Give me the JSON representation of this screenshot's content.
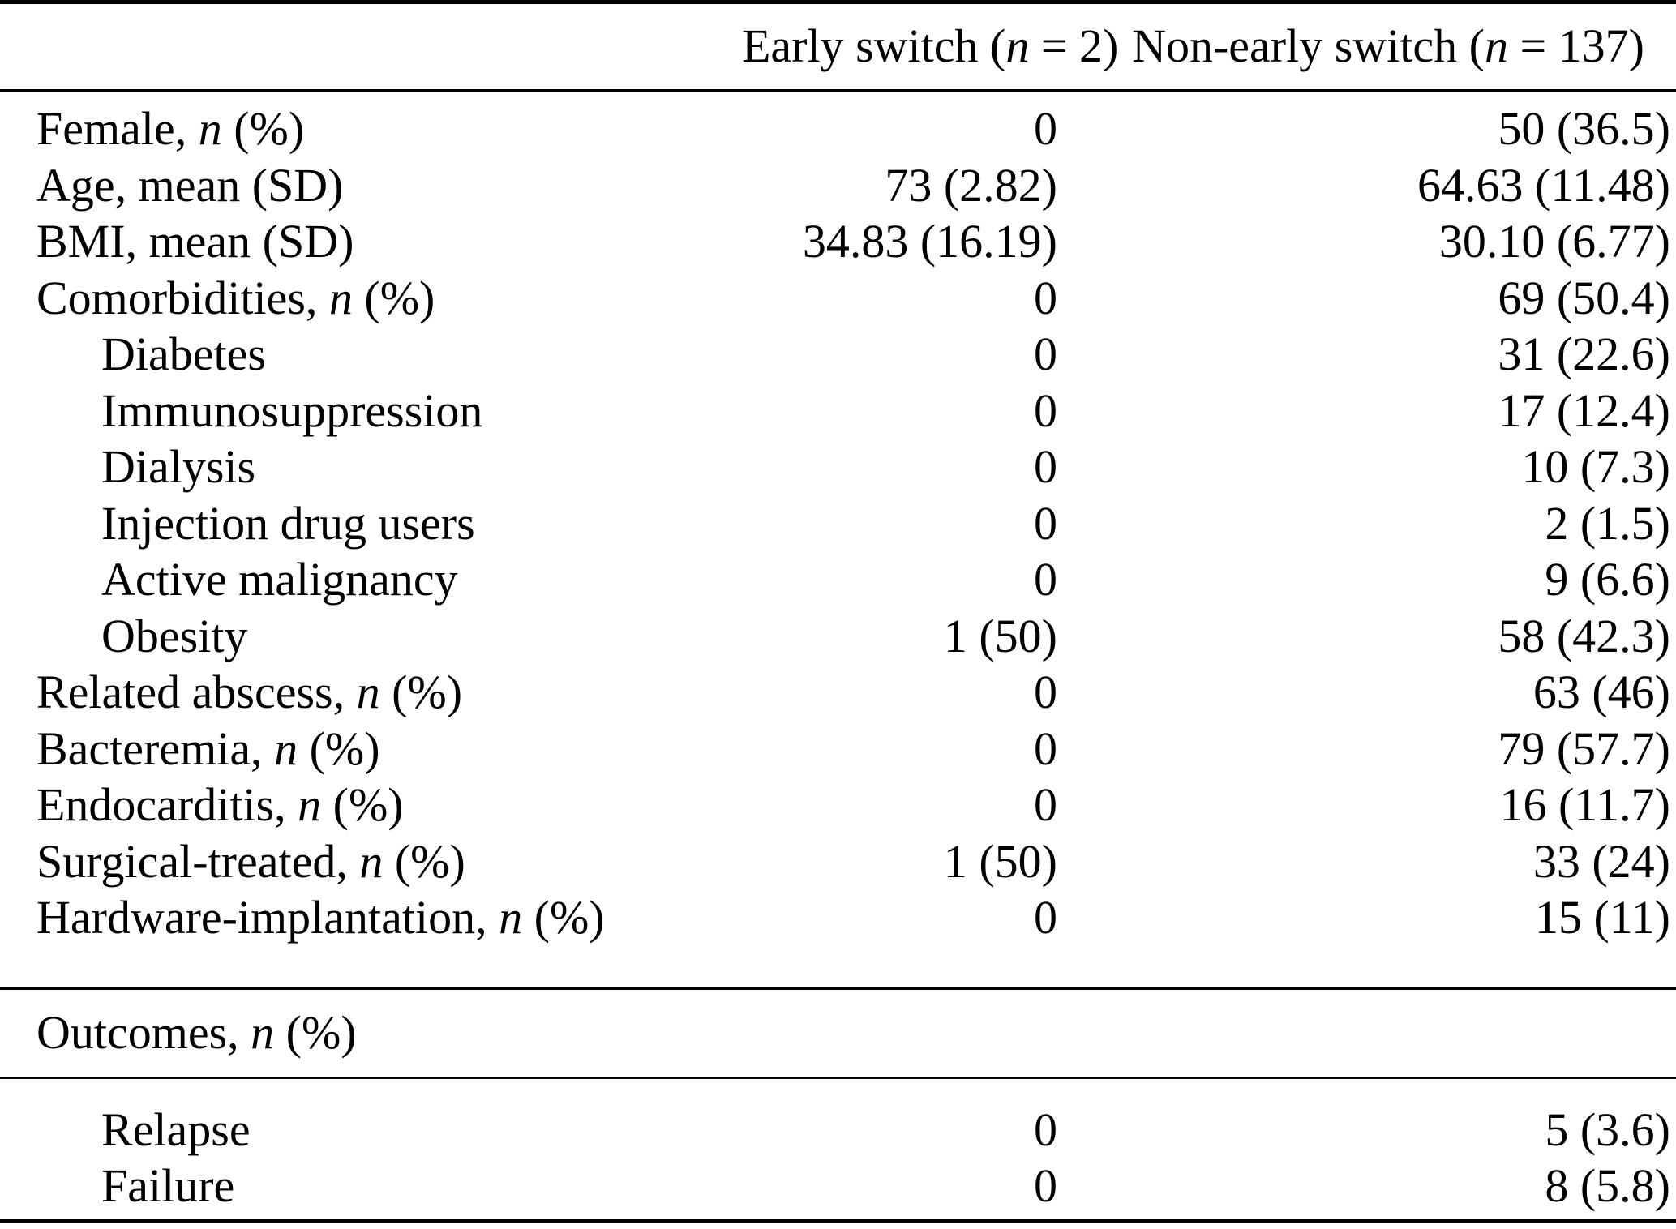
{
  "colors": {
    "text": "#000000",
    "background": "#ffffff",
    "rule": "#000000"
  },
  "table": {
    "header": {
      "label_column": "",
      "col_early": "Early switch (*n* = 2)",
      "col_non_early": "Non-early switch (*n* = 137)"
    },
    "main_rows": [
      {
        "label": "Female, *n* (%)",
        "indent": false,
        "early_switch": "0",
        "non_early_switch": "50 (36.5)"
      },
      {
        "label": "Age, mean (SD)",
        "indent": false,
        "early_switch": "73 (2.82)",
        "non_early_switch": "64.63 (11.48)"
      },
      {
        "label": "BMI, mean (SD)",
        "indent": false,
        "early_switch": "34.83 (16.19)",
        "non_early_switch": "30.10 (6.77)"
      },
      {
        "label": "Comorbidities, *n* (%)",
        "indent": false,
        "early_switch": "0",
        "non_early_switch": "69 (50.4)"
      },
      {
        "label": "Diabetes",
        "indent": true,
        "early_switch": "0",
        "non_early_switch": "31 (22.6)"
      },
      {
        "label": "Immunosuppression",
        "indent": true,
        "early_switch": "0",
        "non_early_switch": "17 (12.4)"
      },
      {
        "label": "Dialysis",
        "indent": true,
        "early_switch": "0",
        "non_early_switch": "10 (7.3)"
      },
      {
        "label": "Injection drug users",
        "indent": true,
        "early_switch": "0",
        "non_early_switch": "2 (1.5)"
      },
      {
        "label": "Active malignancy",
        "indent": true,
        "early_switch": "0",
        "non_early_switch": "9 (6.6)"
      },
      {
        "label": "Obesity",
        "indent": true,
        "early_switch": "1 (50)",
        "non_early_switch": "58 (42.3)"
      },
      {
        "label": "Related abscess, *n* (%)",
        "indent": false,
        "early_switch": "0",
        "non_early_switch": "63 (46)"
      },
      {
        "label": "Bacteremia, *n* (%)",
        "indent": false,
        "early_switch": "0",
        "non_early_switch": "79 (57.7)"
      },
      {
        "label": "Endocarditis, *n* (%)",
        "indent": false,
        "early_switch": "0",
        "non_early_switch": "16 (11.7)"
      },
      {
        "label": "Surgical-treated, *n* (%)",
        "indent": false,
        "early_switch": "1 (50)",
        "non_early_switch": "33 (24)"
      },
      {
        "label": "Hardware-implantation, *n* (%)",
        "indent": false,
        "early_switch": "0",
        "non_early_switch": "15 (11)"
      }
    ],
    "outcomes_section": {
      "label": "Outcomes, *n* (%)",
      "rows": [
        {
          "label": "Relapse",
          "indent": true,
          "early_switch": "0",
          "non_early_switch": "5 (3.6)"
        },
        {
          "label": "Failure",
          "indent": true,
          "early_switch": "0",
          "non_early_switch": "8 (5.8)"
        }
      ]
    }
  }
}
